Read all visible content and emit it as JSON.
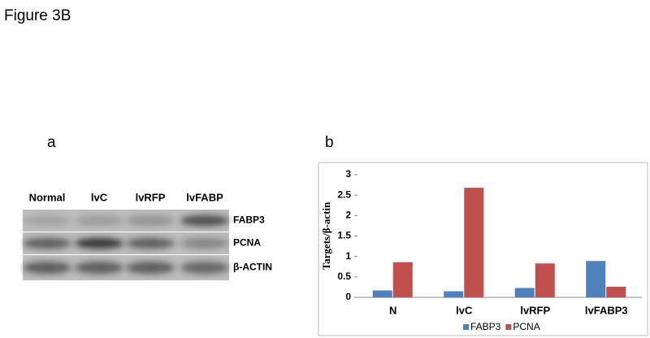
{
  "title": "Figure 3B",
  "blot": {
    "panel": "a",
    "lanes": [
      "Normal",
      "lvC",
      "lvRFP",
      "lvFABP"
    ],
    "rows": [
      "FABP3",
      "PCNA",
      "β-ACTIN"
    ]
  },
  "chart_data": {
    "type": "bar",
    "panel": "b",
    "y_label": "Targets/β-actin",
    "categories": [
      "N",
      "lvC",
      "lvRFP",
      "lvFABP3"
    ],
    "series": [
      {
        "name": "FABP3",
        "color": "#4f81bd",
        "values": [
          0.17,
          0.15,
          0.23,
          0.89
        ]
      },
      {
        "name": "PCNA",
        "color": "#c0504d",
        "values": [
          0.86,
          2.68,
          0.83,
          0.26
        ]
      }
    ],
    "ylim": [
      0,
      3
    ],
    "yticks": [
      0,
      0.5,
      1,
      1.5,
      2,
      2.5,
      3
    ],
    "grid": false,
    "legend": "bottom"
  }
}
